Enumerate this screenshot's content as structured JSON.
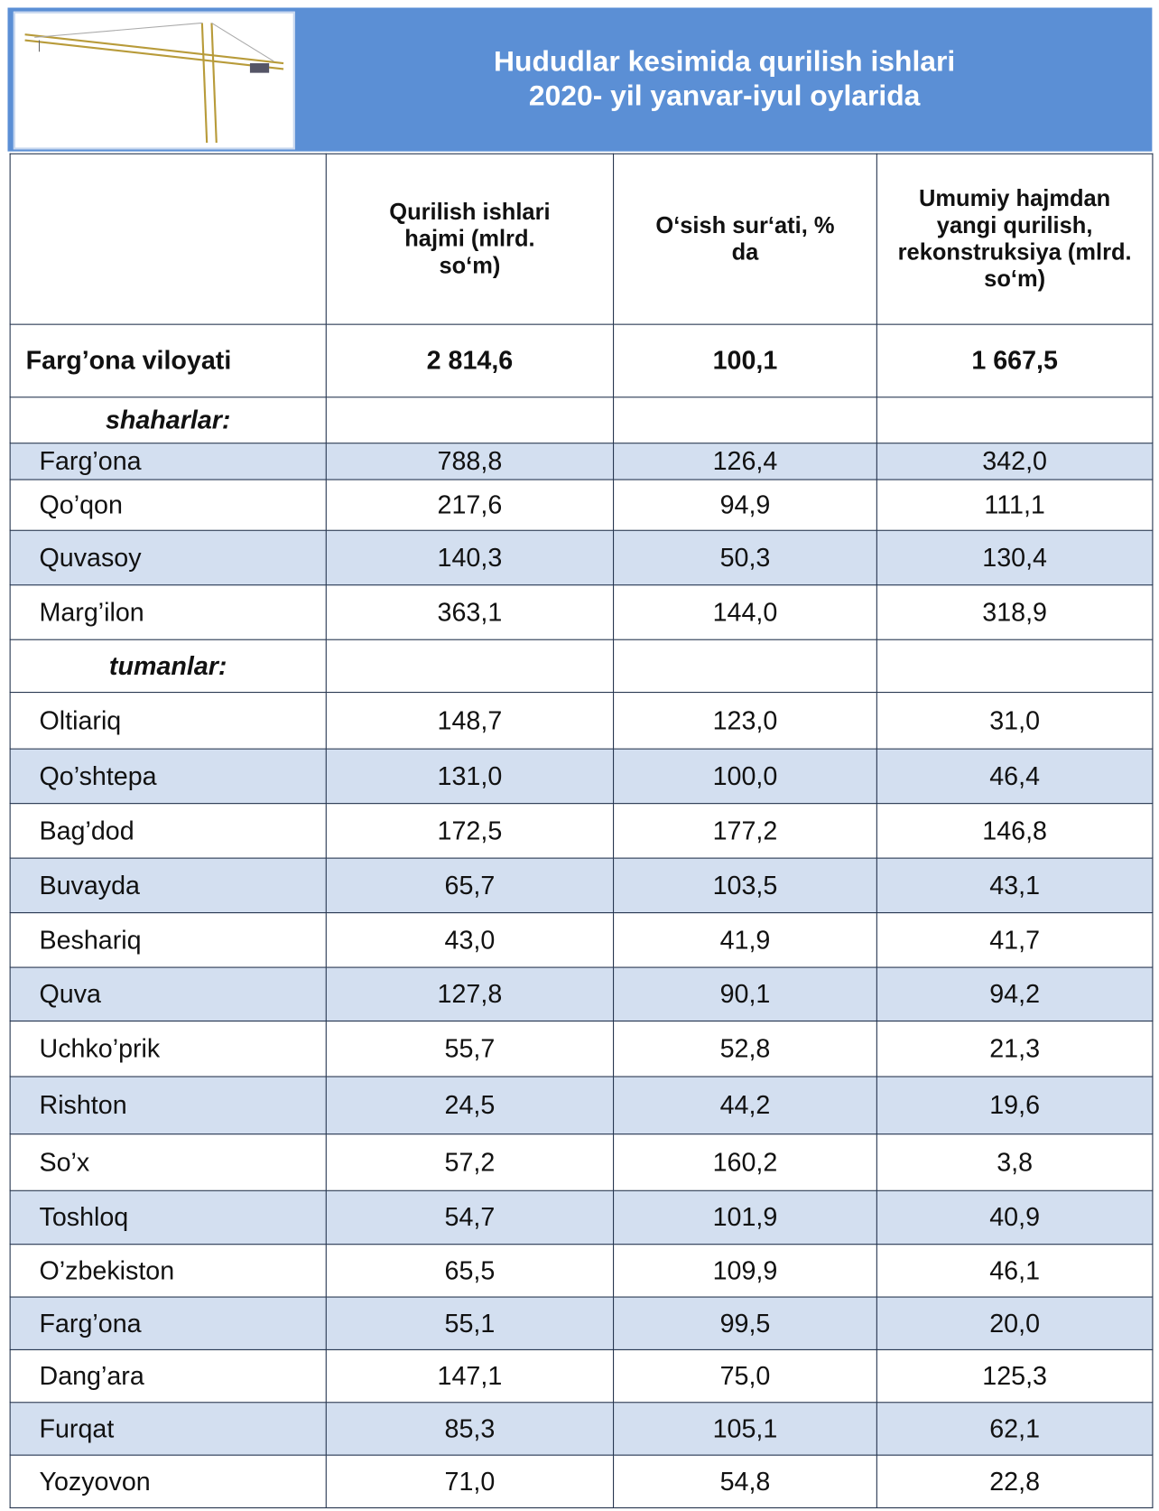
{
  "header": {
    "title": [
      "Hududlar kesimida qurilish ishlari",
      "2020- yil yanvar-iyul oylarida"
    ]
  },
  "table": {
    "columns": [
      "Qurilish ishlari hajmi (mlrd. so‘m)",
      "O‘sish sur‘ati, % da",
      "Umumiy hajmdan yangi qurilish, rekonstruksiya (mlrd. so‘m)"
    ],
    "total": [
      "Farg’ona viloyati",
      "2 814,6",
      "100,1",
      "1 667,5"
    ],
    "rows": [
      [
        "shaharlar:"
      ],
      [
        "Farg’ona",
        "788,8",
        "126,4",
        "342,0"
      ],
      [
        "Qo’qon",
        "217,6",
        "94,9",
        "111,1"
      ],
      [
        "Quvasoy",
        "140,3",
        "50,3",
        "130,4"
      ],
      [
        "Marg’ilon",
        "363,1",
        "144,0",
        "318,9"
      ],
      [
        "tumanlar:"
      ],
      [
        "Oltiariq",
        "148,7",
        "123,0",
        "31,0"
      ],
      [
        "Qo’shtepa",
        "131,0",
        "100,0",
        "46,4"
      ],
      [
        "Bag’dod",
        "172,5",
        "177,2",
        "146,8"
      ],
      [
        "Buvayda",
        "65,7",
        "103,5",
        "43,1"
      ],
      [
        "Beshariq",
        "43,0",
        "41,9",
        "41,7"
      ],
      [
        "Quva",
        "127,8",
        "90,1",
        "94,2"
      ],
      [
        "Uchko’prik",
        "55,7",
        "52,8",
        "21,3"
      ],
      [
        "Rishton",
        "24,5",
        "44,2",
        "19,6"
      ],
      [
        "So’x",
        "57,2",
        "160,2",
        "3,8"
      ],
      [
        "Toshloq",
        "54,7",
        "101,9",
        "40,9"
      ],
      [
        "O’zbekiston",
        "65,5",
        "109,9",
        "46,1"
      ],
      [
        "Farg’ona",
        "55,1",
        "99,5",
        "20,0"
      ],
      [
        "Dang’ara",
        "147,1",
        "75,0",
        "125,3"
      ],
      [
        "Furqat",
        "85,3",
        "105,1",
        "62,1"
      ],
      [
        "Yozyovon",
        "71,0",
        "54,8",
        "22,8"
      ]
    ]
  }
}
